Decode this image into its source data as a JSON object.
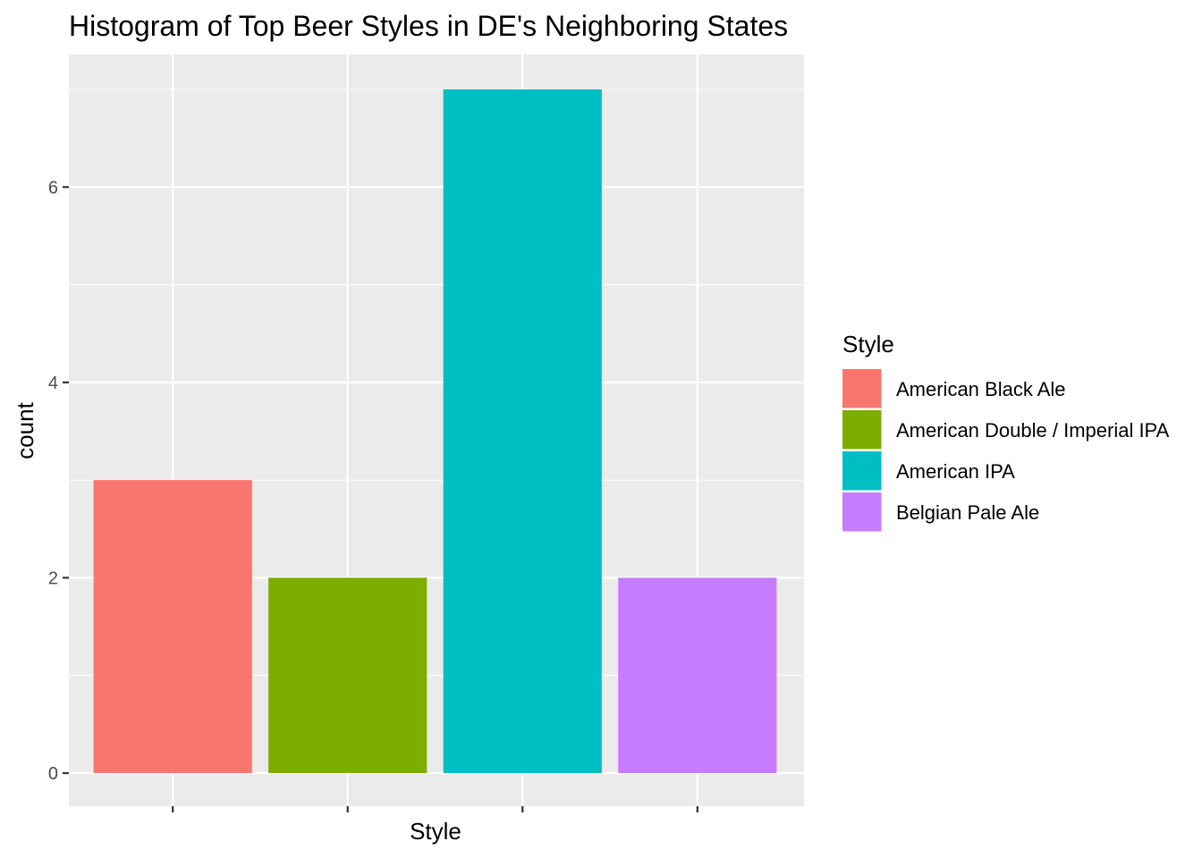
{
  "chart_data": {
    "type": "bar",
    "title": "Histogram of Top Beer Styles in DE's Neighboring States",
    "xlabel": "Style",
    "ylabel": "count",
    "categories": [
      "American Black Ale",
      "American Double / Imperial IPA",
      "American IPA",
      "Belgian Pale Ale"
    ],
    "values": [
      3,
      2,
      7,
      2
    ],
    "colors": [
      "#F8766D",
      "#7CAE00",
      "#00BFC4",
      "#C77CFF"
    ],
    "y_ticks": [
      0,
      2,
      4,
      6
    ],
    "ylim": [
      0,
      7
    ],
    "grid": true,
    "legend": {
      "title": "Style",
      "position": "right"
    }
  }
}
